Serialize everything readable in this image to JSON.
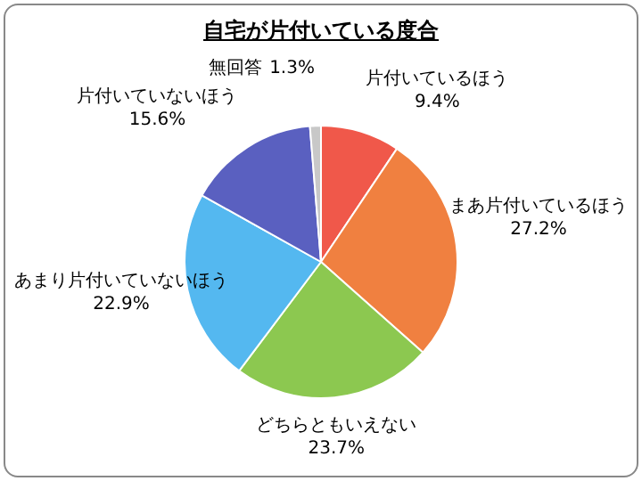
{
  "chart_data": {
    "type": "pie",
    "title": "自宅が片付いている度合",
    "categories": [
      "片付いているほう",
      "まあ片付いているほう",
      "どちらともいえない",
      "あまり片付いていないほう",
      "片付いていないほう",
      "無回答"
    ],
    "values": [
      9.4,
      27.2,
      23.7,
      22.9,
      15.6,
      1.3
    ],
    "colors": [
      "#f0584a",
      "#f08040",
      "#8cc850",
      "#54b8f0",
      "#5a60c0",
      "#c8c8c8"
    ],
    "value_labels": [
      "9.4%",
      "27.2%",
      "23.7%",
      "22.9%",
      "15.6%",
      "1.3%"
    ],
    "legend": false
  }
}
